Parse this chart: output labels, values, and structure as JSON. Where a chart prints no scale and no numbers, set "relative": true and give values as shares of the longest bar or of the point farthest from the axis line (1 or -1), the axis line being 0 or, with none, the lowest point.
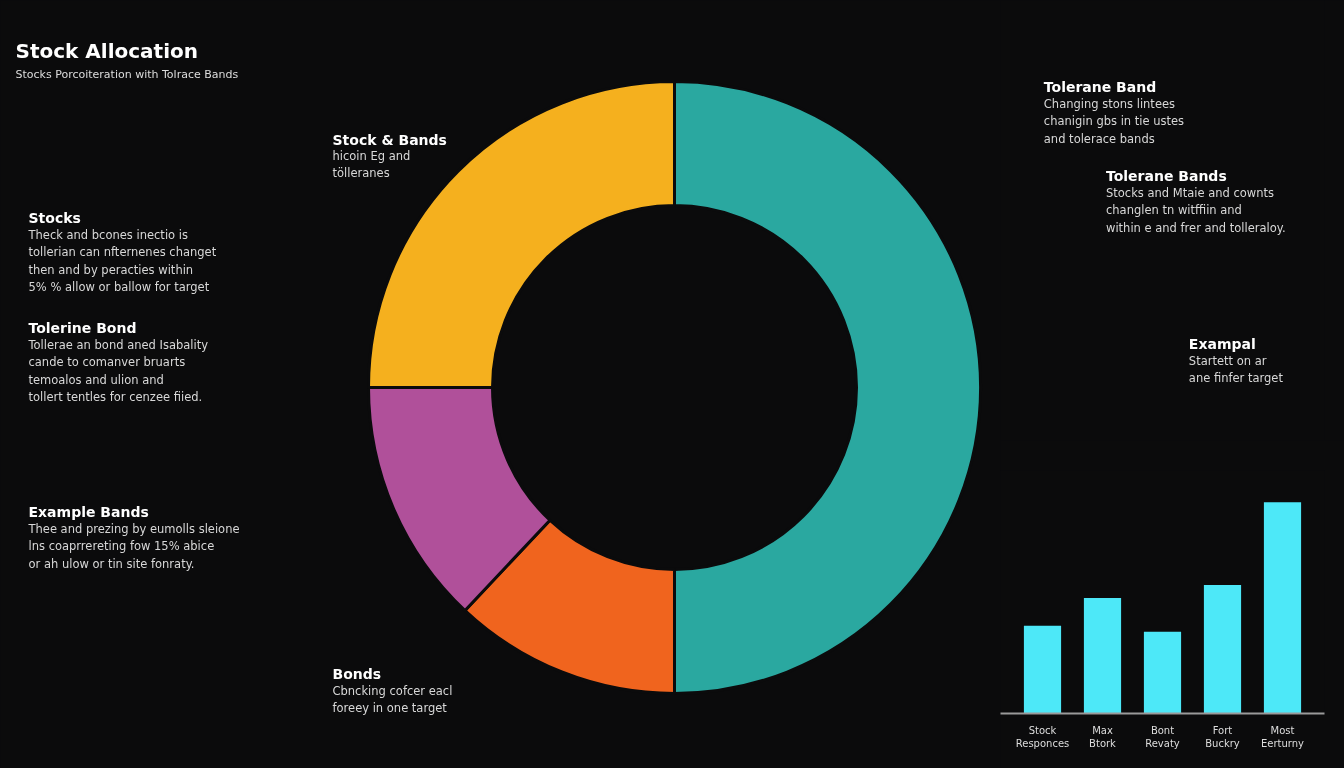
{
  "chart_data": [
    {
      "type": "donut",
      "title": "Stock Allocation",
      "subtitle": "Stocks Porcoiteration with Tolrace Bands",
      "categories": [
        null,
        null,
        null,
        null
      ],
      "values": [
        50,
        12,
        13,
        25
      ],
      "colors": [
        "#2aa8a0",
        "#f0641e",
        "#b0509a",
        "#f5b01e"
      ],
      "annotations": [
        "Stock & Bands",
        "hicoin Eg and\ntöllеranes",
        "Stocks",
        "Theck and bcones inectio is\ntollerian can nfternenes changet\nthen and by peracties within\n5% % allow or ballow for target",
        "Tolerine Bond",
        "Tollerae an bond aned Isabality\ncande to comanver bruarts\ntemoalos and ulion and\ntollert tentles for cenzee fiied.",
        "Example Bands",
        "Thee and prezing by eumolls sleione\nlns coaprrereting fow 15% abice\nor ah ulow or tin site fonraty.",
        "Bonds",
        "Cbncking cofcer eacl\nforeey in one target",
        "Tolerane Band",
        "Changing stons lintees\nchanigin gbs in tie ustes\nand tolerace bands",
        "Tolerane Bands",
        "Stocks and Mtaie and cownts\nchanglen tn witffiin and\nwithin e and frer and tolleraloy.",
        "Exampal",
        "Startett on ar\nane finfer target"
      ]
    },
    {
      "type": "bar",
      "relative": true,
      "categories": [
        "Stock Responces",
        "Max Btork",
        "Bont Revaty",
        "Fort Buckry",
        "Most Eerturny"
      ],
      "values": [
        0.415,
        0.547,
        0.387,
        0.608,
        1
      ],
      "color": "#4de8f8"
    }
  ]
}
